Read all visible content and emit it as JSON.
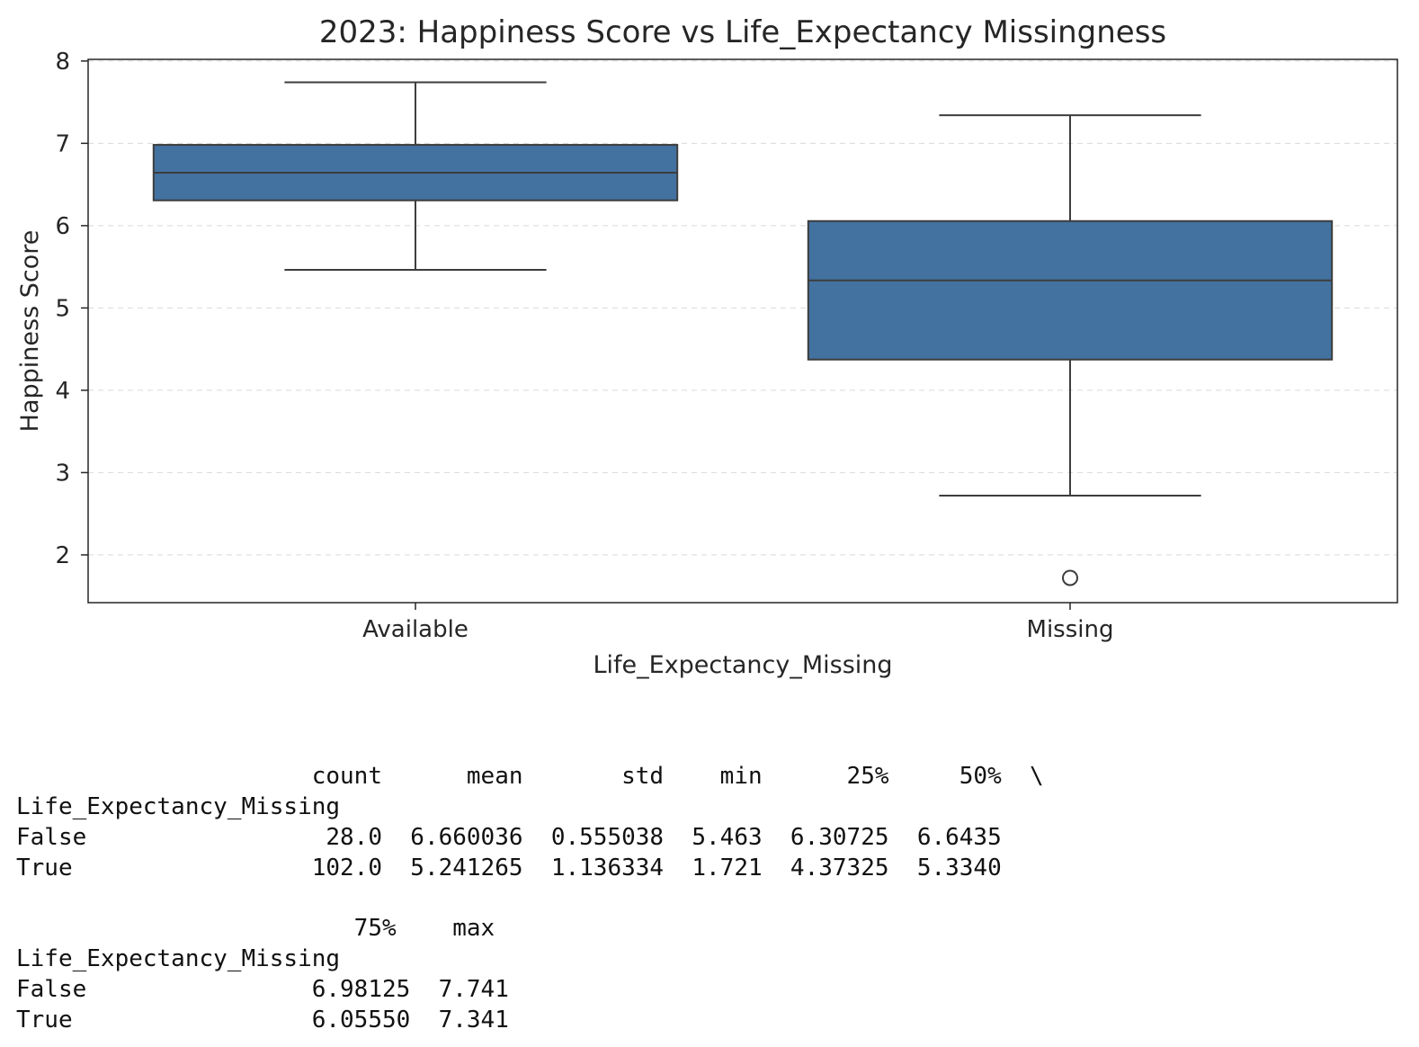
{
  "chart_data": {
    "type": "box",
    "title": "2023: Happiness Score vs Life_Expectancy Missingness",
    "xlabel": "Life_Expectancy_Missing",
    "ylabel": "Happiness Score",
    "ylim": [
      1.42,
      8.02
    ],
    "yticks": [
      2,
      3,
      4,
      5,
      6,
      7,
      8
    ],
    "grid": "y-dashed",
    "box_color": "#4372a0",
    "categories": [
      "Available",
      "Missing"
    ],
    "series": [
      {
        "category": "Available",
        "whisker_low": 5.463,
        "q1": 6.30725,
        "median": 6.6435,
        "q3": 6.98125,
        "whisker_high": 7.741,
        "outliers": []
      },
      {
        "category": "Missing",
        "whisker_low": 2.72,
        "q1": 4.37325,
        "median": 5.334,
        "q3": 6.0555,
        "whisker_high": 7.341,
        "outliers": [
          1.721
        ]
      }
    ]
  },
  "stats_table": {
    "block1": {
      "header": "                     count      mean       std    min      25%     50%  \\",
      "index_name": "Life_Expectancy_Missing",
      "rows": [
        "False                 28.0  6.660036  0.555038  5.463  6.30725  6.6435",
        "True                 102.0  5.241265  1.136334  1.721  4.37325  5.3340"
      ]
    },
    "block2": {
      "header": "                        75%    max",
      "index_name": "Life_Expectancy_Missing",
      "rows": [
        "False                6.98125  7.741",
        "True                 6.05550  7.341"
      ]
    }
  }
}
